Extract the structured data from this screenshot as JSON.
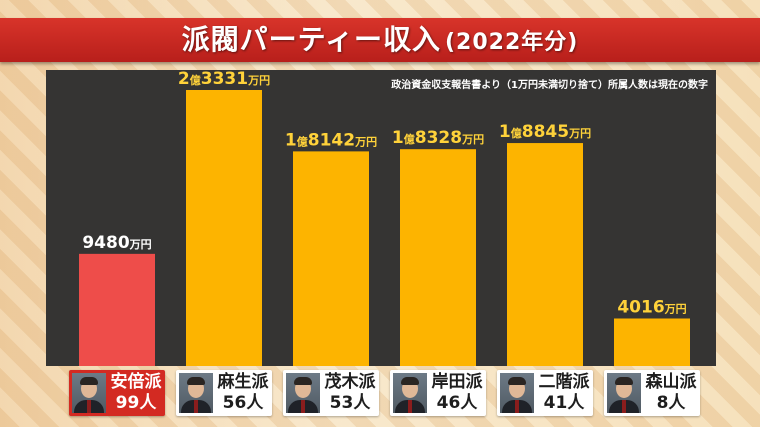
{
  "title": "派閥パーティー収入",
  "title_suffix": "(2022年分)",
  "note": "政治資金収支報告書より（1万円未満切り捨て）所属人数は現在の数字",
  "colors": {
    "highlight_bar": "#ee4d4a",
    "bar": "#fdb400",
    "highlight_label": "#ffffff",
    "label": "#ffd23a",
    "plot_bg": "#353433"
  },
  "factions": [
    {
      "name": "安倍派",
      "members": "99人",
      "highlight": true
    },
    {
      "name": "麻生派",
      "members": "56人",
      "highlight": false
    },
    {
      "name": "茂木派",
      "members": "53人",
      "highlight": false
    },
    {
      "name": "岸田派",
      "members": "46人",
      "highlight": false
    },
    {
      "name": "二階派",
      "members": "41人",
      "highlight": false
    },
    {
      "name": "森山派",
      "members": "8人",
      "highlight": false
    }
  ],
  "chart_data": {
    "type": "bar",
    "title": "派閥パーティー収入(2022年分)",
    "categories": [
      "安倍派",
      "麻生派",
      "茂木派",
      "岸田派",
      "二階派",
      "森山派"
    ],
    "values": [
      9480,
      23331,
      18142,
      18328,
      18845,
      4016
    ],
    "unit": "万円",
    "value_labels": [
      {
        "main": "9480",
        "unit": "万円"
      },
      {
        "oku": "2",
        "oku_unit": "億",
        "main": "3331",
        "unit": "万円"
      },
      {
        "oku": "1",
        "oku_unit": "億",
        "main": "8142",
        "unit": "万円"
      },
      {
        "oku": "1",
        "oku_unit": "億",
        "main": "8328",
        "unit": "万円"
      },
      {
        "oku": "1",
        "oku_unit": "億",
        "main": "8845",
        "unit": "万円"
      },
      {
        "main": "4016",
        "unit": "万円"
      }
    ],
    "xlabel": "",
    "ylabel": "",
    "ylim": [
      0,
      23331
    ],
    "grid": false,
    "legend": "none"
  }
}
